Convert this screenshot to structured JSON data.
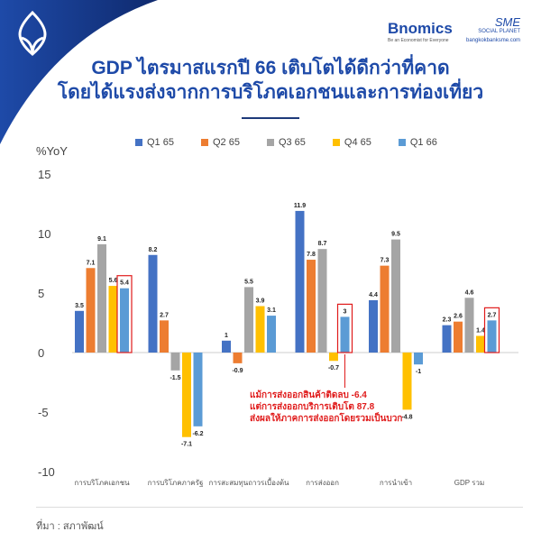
{
  "header": {
    "brand": "Bnomics",
    "brand_tagline": "Be an Economist for Everyone",
    "partner": "SME",
    "partner_sub": "SOCIAL PLANET",
    "partner_url": "bangkokbanksme.com"
  },
  "title_line1": "GDP ไตรมาสแรกปี 66 เติบโตได้ดีกว่าที่คาด",
  "title_line2": "โดยได้แรงส่งจากการบริโภคเอกชนและการท่องเที่ยว",
  "note": [
    "แม้การส่งออกสินค้าติดลบ -6.4",
    "แต่การส่งออกบริการเติบโต 87.8",
    "ส่งผลให้ภาคการส่งออกโดยรวมเป็นบวก"
  ],
  "source": "ที่มา : สภาพัฒน์",
  "chart_data": {
    "type": "bar",
    "ylabel": "%YoY",
    "ylim": [
      -10,
      15
    ],
    "yticks": [
      "15",
      "10",
      "5",
      "0",
      "-5",
      "-10"
    ],
    "categories": [
      "การบริโภคเอกชน",
      "การบริโภคภาครัฐ",
      "การสะสมทุนถาวรเบื้องต้น",
      "การส่งออก",
      "การนำเข้า",
      "GDP รวม"
    ],
    "series": [
      {
        "name": "Q1 65",
        "color": "#4472c4",
        "values": [
          3.5,
          8.2,
          1,
          11.9,
          4.4,
          2.3
        ],
        "labels": [
          "3.5",
          "8.2",
          "1",
          "11.9",
          "4.4",
          "2.3"
        ]
      },
      {
        "name": "Q2 65",
        "color": "#ed7d31",
        "values": [
          7.1,
          2.7,
          -0.9,
          7.8,
          7.3,
          2.6
        ],
        "labels": [
          "7.1",
          "2.7",
          "-0.9",
          "7.8",
          "7.3",
          "2.6"
        ]
      },
      {
        "name": "Q3 65",
        "color": "#a5a5a5",
        "values": [
          9.1,
          -1.5,
          5.5,
          8.7,
          9.5,
          4.6
        ],
        "labels": [
          "9.1",
          "-1.5",
          "5.5",
          "8.7",
          "9.5",
          "4.6"
        ]
      },
      {
        "name": "Q4 65",
        "color": "#ffc000",
        "values": [
          5.6,
          -7.1,
          3.9,
          -0.7,
          -4.8,
          1.4
        ],
        "labels": [
          "5.6",
          "-7.1",
          "3.9",
          "-0.7",
          "-4.8",
          "1.4"
        ]
      },
      {
        "name": "Q1 66",
        "color": "#5b9bd5",
        "values": [
          5.4,
          -6.2,
          3.1,
          3,
          -1,
          2.7
        ],
        "labels": [
          "5.4",
          "-6.2",
          "3.1",
          "3",
          "-1",
          "2.7"
        ]
      }
    ],
    "highlighted": [
      [
        4,
        0
      ],
      [
        4,
        3
      ],
      [
        4,
        5
      ]
    ],
    "highlight_color": "#e01b1b"
  }
}
